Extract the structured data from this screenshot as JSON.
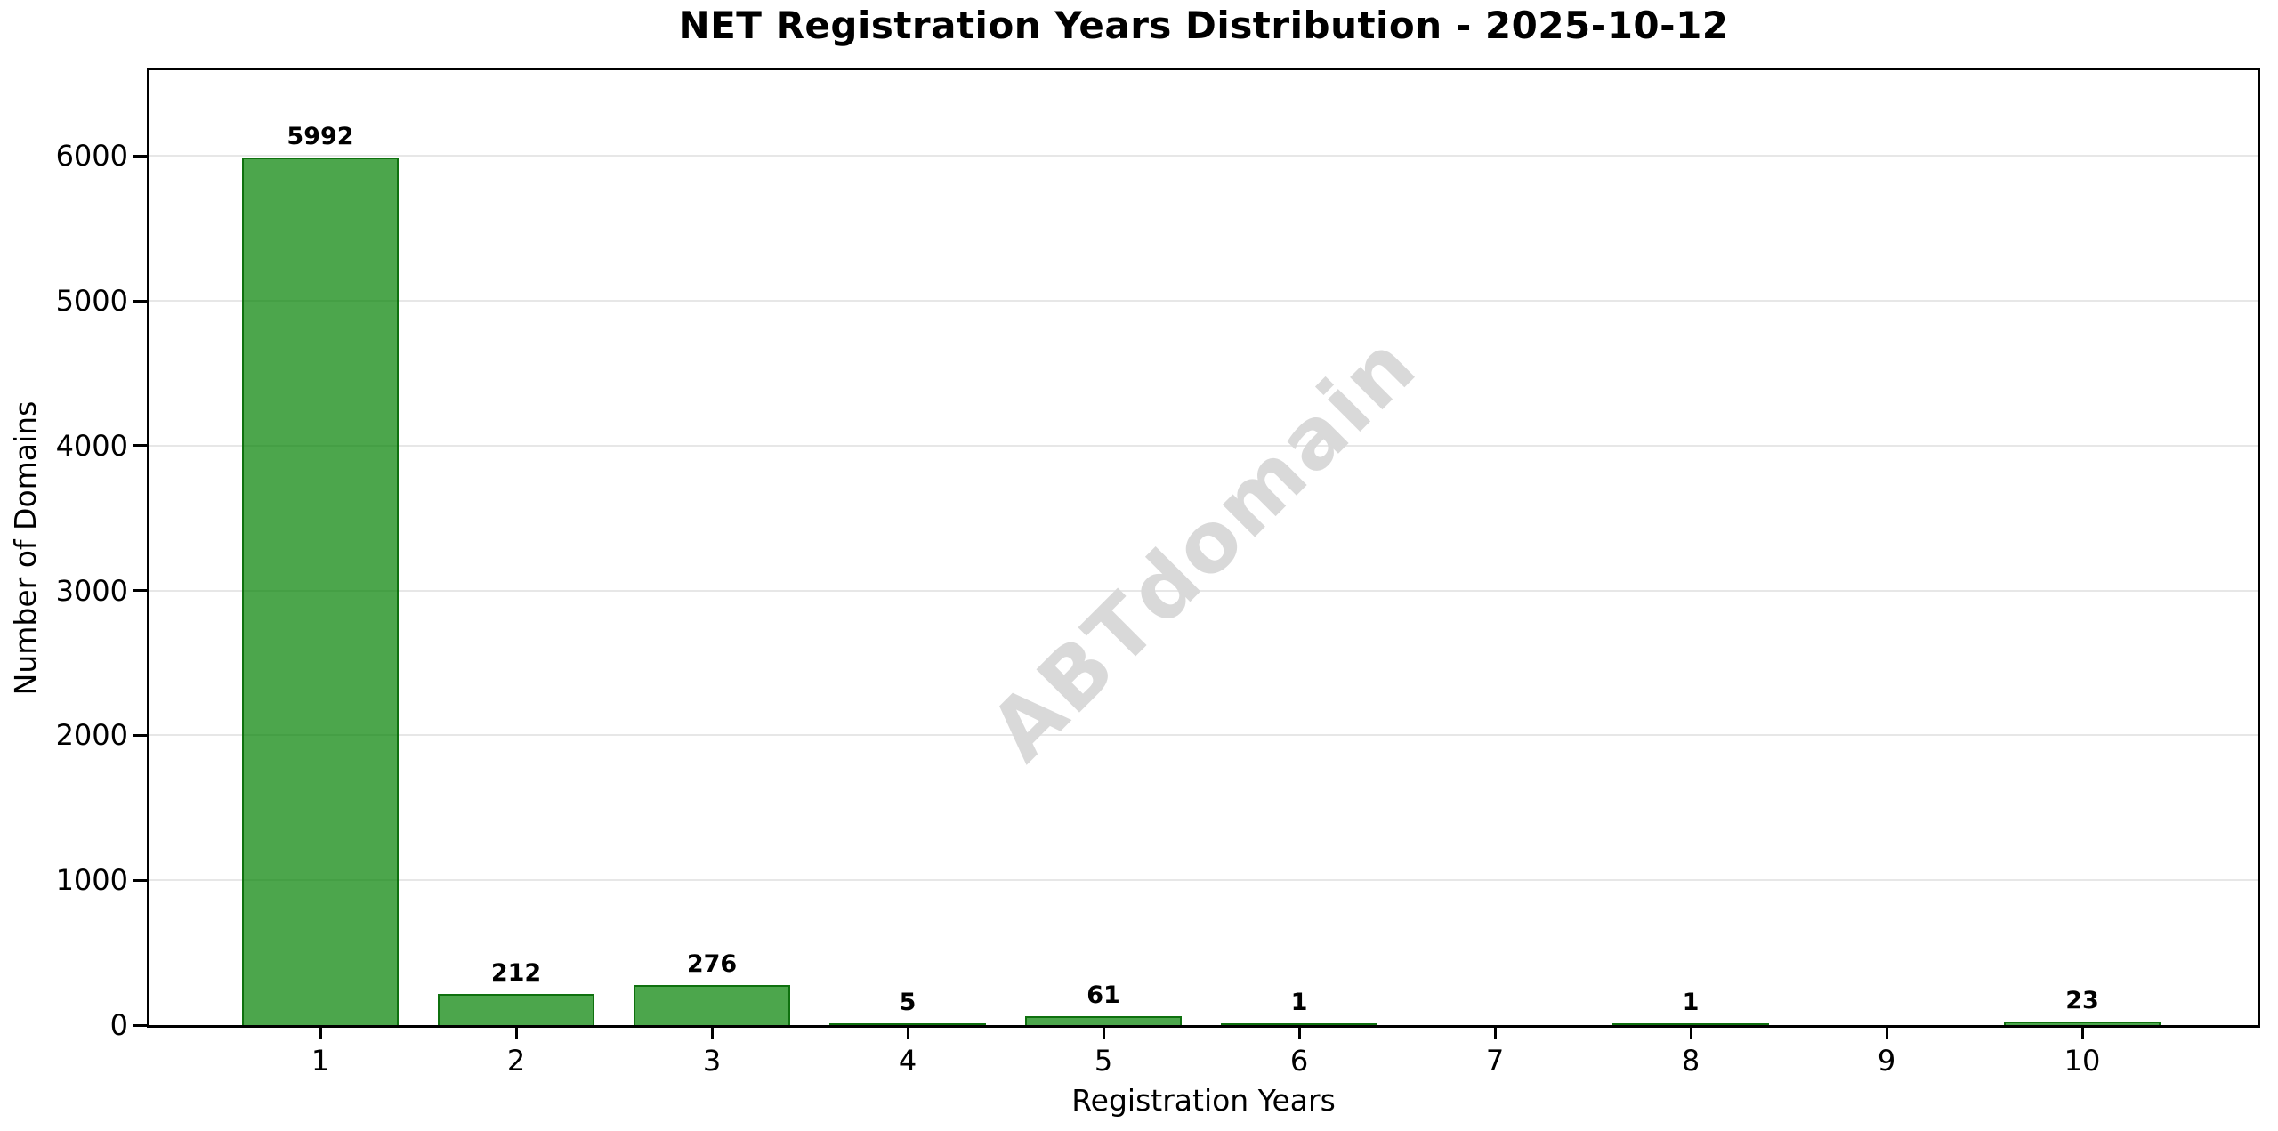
{
  "figure": {
    "title": "NET Registration Years Distribution - 2025-10-12",
    "watermark": "ABTdomain"
  },
  "chart_data": {
    "type": "bar",
    "title": "NET Registration Years Distribution - 2025-10-12",
    "xlabel": "Registration Years",
    "ylabel": "Number of Domains",
    "categories": [
      "1",
      "2",
      "3",
      "4",
      "5",
      "6",
      "7",
      "8",
      "9",
      "10"
    ],
    "values": [
      5992,
      212,
      276,
      5,
      61,
      1,
      0,
      1,
      0,
      23
    ],
    "bar_labels": [
      "5992",
      "212",
      "276",
      "5",
      "61",
      "1",
      "",
      "1",
      "",
      "23"
    ],
    "yticks": [
      0,
      1000,
      2000,
      3000,
      4000,
      5000,
      6000
    ],
    "ylim": [
      0,
      6591
    ],
    "grid": "horizontal-only",
    "legend": "none",
    "watermark": "ABTdomain",
    "colors": {
      "bar_fill": "rgba(0,128,0,0.7)",
      "bar_fill_hex_over_white": "#4CA64C",
      "bar_edge": "rgba(0,100,0,0.8)",
      "bar_edge_hex_over_white": "#2E7D32",
      "grid_line": "#E7E7E7",
      "axis": "#000000",
      "watermark": "#D9D9D9",
      "background": "#FFFFFF"
    }
  }
}
